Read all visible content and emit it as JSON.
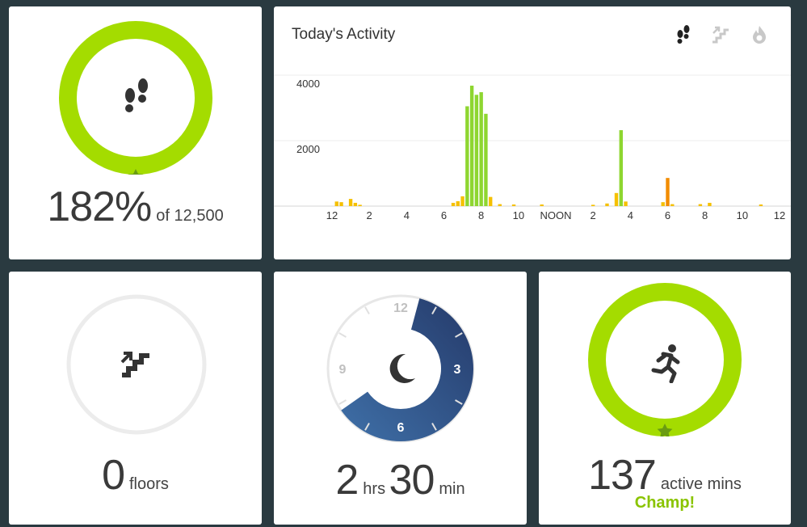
{
  "steps": {
    "percent": "182%",
    "goal_text": "of 12,500",
    "icon": "footsteps-icon"
  },
  "activity": {
    "title": "Today's Activity",
    "toggle_icons": [
      "steps-toggle-icon",
      "floors-toggle-icon",
      "calories-toggle-icon"
    ]
  },
  "floors": {
    "value": "0",
    "unit": "floors",
    "icon": "stairs-icon"
  },
  "sleep": {
    "hours": "2",
    "hours_unit": "hrs",
    "minutes": "30",
    "minutes_unit": "min",
    "dial_labels": [
      "12",
      "3",
      "6",
      "9"
    ],
    "icon": "moon-icon"
  },
  "active_minutes": {
    "value": "137",
    "unit": "active mins",
    "badge": "Champ!",
    "icon": "running-icon"
  },
  "colors": {
    "ring_green": "#a4dc00",
    "ring_track": "#eeeeee",
    "bar_green": "#8ed630",
    "bar_yellow": "#f5c000",
    "bar_orange": "#f28c00",
    "sleep_dark": "#253a6a",
    "sleep_light": "#3f70a8"
  },
  "chart_data": {
    "type": "bar",
    "title": "Today's Activity",
    "y_ticks": [
      "4000",
      "2000"
    ],
    "x_ticks": [
      "12",
      "2",
      "4",
      "6",
      "8",
      "10",
      "NOON",
      "2",
      "4",
      "6",
      "8",
      "10",
      "12"
    ],
    "ylim": [
      0,
      4000
    ],
    "xlim_hours": [
      0,
      24
    ],
    "grid": true,
    "bars": [
      {
        "hour": 0.25,
        "value": 140,
        "color": "yellow"
      },
      {
        "hour": 0.5,
        "value": 120,
        "color": "yellow"
      },
      {
        "hour": 1.0,
        "value": 220,
        "color": "yellow"
      },
      {
        "hour": 1.25,
        "value": 100,
        "color": "yellow"
      },
      {
        "hour": 1.5,
        "value": 40,
        "color": "yellow"
      },
      {
        "hour": 6.5,
        "value": 100,
        "color": "yellow"
      },
      {
        "hour": 6.75,
        "value": 150,
        "color": "yellow"
      },
      {
        "hour": 7.0,
        "value": 300,
        "color": "yellow"
      },
      {
        "hour": 7.25,
        "value": 3050,
        "color": "green"
      },
      {
        "hour": 7.5,
        "value": 3680,
        "color": "green"
      },
      {
        "hour": 7.75,
        "value": 3400,
        "color": "green"
      },
      {
        "hour": 8.0,
        "value": 3480,
        "color": "green"
      },
      {
        "hour": 8.25,
        "value": 2820,
        "color": "green"
      },
      {
        "hour": 8.5,
        "value": 280,
        "color": "yellow"
      },
      {
        "hour": 9.0,
        "value": 60,
        "color": "yellow"
      },
      {
        "hour": 9.75,
        "value": 50,
        "color": "yellow"
      },
      {
        "hour": 11.25,
        "value": 50,
        "color": "yellow"
      },
      {
        "hour": 14.0,
        "value": 40,
        "color": "yellow"
      },
      {
        "hour": 14.75,
        "value": 80,
        "color": "yellow"
      },
      {
        "hour": 15.25,
        "value": 400,
        "color": "yellow"
      },
      {
        "hour": 15.5,
        "value": 2320,
        "color": "green"
      },
      {
        "hour": 15.75,
        "value": 140,
        "color": "yellow"
      },
      {
        "hour": 17.75,
        "value": 120,
        "color": "yellow"
      },
      {
        "hour": 18.0,
        "value": 860,
        "color": "orange"
      },
      {
        "hour": 18.25,
        "value": 60,
        "color": "yellow"
      },
      {
        "hour": 19.75,
        "value": 60,
        "color": "yellow"
      },
      {
        "hour": 20.25,
        "value": 100,
        "color": "yellow"
      },
      {
        "hour": 23.0,
        "value": 50,
        "color": "yellow"
      }
    ]
  }
}
